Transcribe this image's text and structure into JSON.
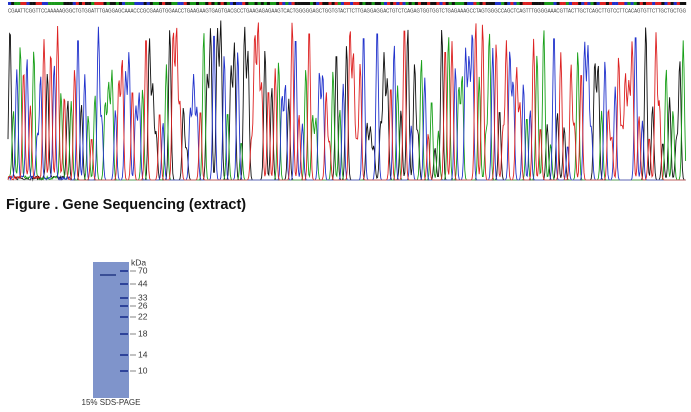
{
  "sequencing": {
    "sequence": "CGAATTCGGTTCCAAAAAGGGCTGTGGATTTGAGGAGCAAACCCGCGAAGTGGAACCTGAAGAAGTGAGTGACGCCTGAAGAGAGAAGTCACTGGGGGAGCTGGTGTACTTCTTGAGGAGGACTGTCTCAGAGTGGTGGTCTGAGAAAGCCTAGTGGGCCAGCTCAGTTTGGGGAAACGTTACTTGCTCAGCTTGTCCTTCACAGTGTTCTTGCTGCTGG",
    "caption": "Figure . Gene Sequencing (extract)"
  },
  "gel": {
    "unit": "kDa",
    "markers": [
      70,
      44,
      33,
      26,
      22,
      18,
      14,
      10
    ],
    "caption": "15% SDS-PAGE"
  }
}
